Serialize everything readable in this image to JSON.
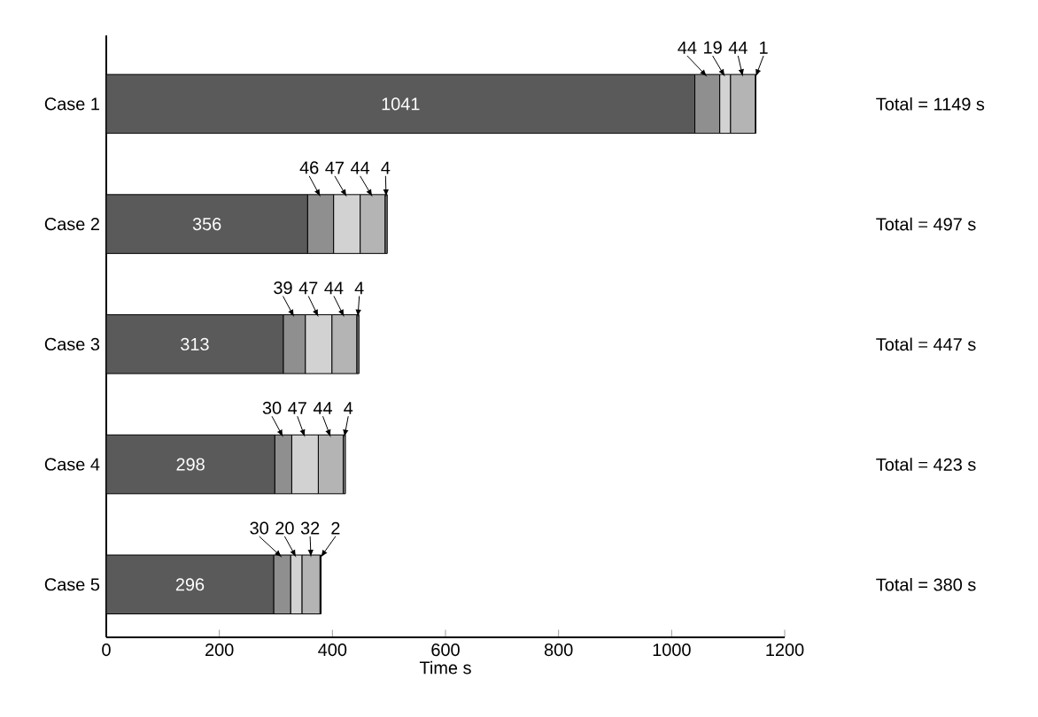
{
  "chart_data": {
    "type": "bar",
    "orientation": "horizontal",
    "stacked": true,
    "data_labels": true,
    "categories": [
      "Case 1",
      "Case 2",
      "Case 3",
      "Case 4",
      "Case 5"
    ],
    "series": [
      {
        "color": "#5a5a5a",
        "values": [
          1041,
          356,
          313,
          298,
          296
        ]
      },
      {
        "color": "#8f8f8f",
        "values": [
          44,
          46,
          39,
          30,
          30
        ]
      },
      {
        "color": "#d2d2d2",
        "values": [
          19,
          47,
          47,
          47,
          20
        ]
      },
      {
        "color": "#b4b4b4",
        "values": [
          44,
          44,
          44,
          44,
          32
        ]
      },
      {
        "color": "#7a7a7a",
        "values": [
          1,
          4,
          4,
          4,
          2
        ]
      }
    ],
    "annotations": [
      "Total = 1149 s",
      "Total = 497 s",
      "Total = 447 s",
      "Total = 423 s",
      "Total = 380 s"
    ],
    "xlabel": "Time s",
    "xlim": [
      0,
      1200
    ],
    "xticks": [
      0,
      200,
      400,
      600,
      800,
      1000,
      1200
    ]
  }
}
